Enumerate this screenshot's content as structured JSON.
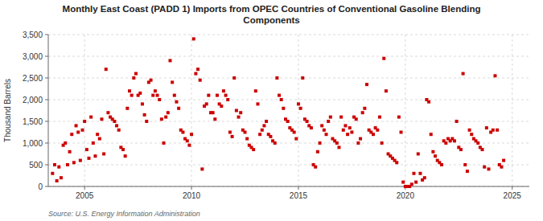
{
  "chart_data": {
    "type": "scatter",
    "title": "Monthly East Coast (PADD 1) Imports from OPEC Countries of Conventional Gasoline Blending\nComponents",
    "ylabel": "Thousand Barrels",
    "annotations": [
      "Source: U.S. Energy Information Administration"
    ],
    "color": "#cc0000",
    "marker": "square",
    "grid": true,
    "xlim": [
      2003.3,
      2025.8
    ],
    "xticks": [
      2005,
      2010,
      2015,
      2020,
      2025
    ],
    "ylim": [
      0,
      3500
    ],
    "yticks": [
      0,
      500,
      {
        "value": 1000,
        "label": "1,000"
      },
      {
        "value": 1500,
        "label": "1,500"
      },
      {
        "value": 2000,
        "label": "2,000"
      },
      {
        "value": 2500,
        "label": "2,500"
      },
      {
        "value": 3000,
        "label": "3,000"
      },
      {
        "value": 3500,
        "label": "3,500"
      }
    ],
    "x": [
      2003.5,
      2003.6,
      2003.7,
      2003.8,
      2003.9,
      2004.0,
      2004.1,
      2004.2,
      2004.3,
      2004.4,
      2004.5,
      2004.6,
      2004.7,
      2004.8,
      2004.9,
      2005.0,
      2005.1,
      2005.2,
      2005.3,
      2005.4,
      2005.5,
      2005.6,
      2005.7,
      2005.8,
      2005.9,
      2006.0,
      2006.1,
      2006.2,
      2006.3,
      2006.4,
      2006.5,
      2006.6,
      2006.7,
      2006.8,
      2006.9,
      2007.0,
      2007.1,
      2007.2,
      2007.3,
      2007.4,
      2007.5,
      2007.6,
      2007.7,
      2007.8,
      2007.9,
      2008.0,
      2008.1,
      2008.2,
      2008.3,
      2008.4,
      2008.5,
      2008.6,
      2008.7,
      2008.8,
      2008.9,
      2009.0,
      2009.1,
      2009.2,
      2009.3,
      2009.4,
      2009.5,
      2009.6,
      2009.7,
      2009.8,
      2009.9,
      2010.0,
      2010.1,
      2010.2,
      2010.3,
      2010.4,
      2010.5,
      2010.6,
      2010.7,
      2010.8,
      2010.9,
      2011.0,
      2011.1,
      2011.2,
      2011.3,
      2011.4,
      2011.5,
      2011.6,
      2011.7,
      2011.8,
      2011.9,
      2012.0,
      2012.1,
      2012.2,
      2012.3,
      2012.4,
      2012.5,
      2012.6,
      2012.7,
      2012.8,
      2012.9,
      2013.0,
      2013.1,
      2013.2,
      2013.3,
      2013.4,
      2013.5,
      2013.6,
      2013.7,
      2013.8,
      2013.9,
      2014.0,
      2014.1,
      2014.2,
      2014.3,
      2014.4,
      2014.5,
      2014.6,
      2014.7,
      2014.8,
      2014.9,
      2015.0,
      2015.1,
      2015.2,
      2015.3,
      2015.4,
      2015.5,
      2015.6,
      2015.7,
      2015.8,
      2015.9,
      2016.0,
      2016.1,
      2016.2,
      2016.3,
      2016.4,
      2016.5,
      2016.6,
      2016.7,
      2016.8,
      2016.9,
      2017.0,
      2017.1,
      2017.2,
      2017.3,
      2017.4,
      2017.5,
      2017.6,
      2017.7,
      2017.8,
      2017.9,
      2018.0,
      2018.1,
      2018.2,
      2018.3,
      2018.4,
      2018.5,
      2018.6,
      2018.7,
      2018.8,
      2018.9,
      2019.0,
      2019.1,
      2019.2,
      2019.3,
      2019.4,
      2019.5,
      2019.6,
      2019.7,
      2019.8,
      2019.9,
      2020.0,
      2020.1,
      2020.2,
      2020.3,
      2020.4,
      2020.5,
      2020.6,
      2020.7,
      2020.8,
      2020.9,
      2021.0,
      2021.1,
      2021.2,
      2021.3,
      2021.4,
      2021.5,
      2021.6,
      2021.7,
      2021.8,
      2021.9,
      2022.0,
      2022.1,
      2022.2,
      2022.3,
      2022.4,
      2022.5,
      2022.6,
      2022.7,
      2022.8,
      2022.9,
      2023.0,
      2023.1,
      2023.2,
      2023.3,
      2023.4,
      2023.5,
      2023.6,
      2023.7,
      2023.8,
      2023.9,
      2024.0,
      2024.1,
      2024.2,
      2024.3,
      2024.4,
      2024.5,
      2024.6
    ],
    "values": [
      300,
      500,
      130,
      450,
      200,
      950,
      1000,
      500,
      800,
      1200,
      550,
      1400,
      1250,
      600,
      1300,
      1500,
      850,
      650,
      1600,
      1000,
      700,
      1200,
      1100,
      1550,
      750,
      2700,
      1700,
      1600,
      1550,
      1500,
      1400,
      1300,
      900,
      850,
      700,
      1800,
      2200,
      2100,
      2500,
      2600,
      2100,
      2150,
      1900,
      1650,
      1500,
      2400,
      2450,
      2100,
      2200,
      2100,
      2000,
      1550,
      1000,
      1600,
      1700,
      2900,
      2400,
      2100,
      1950,
      1800,
      1300,
      1250,
      1100,
      1050,
      950,
      1200,
      3400,
      2600,
      2700,
      2450,
      400,
      1850,
      1900,
      2100,
      1700,
      1700,
      1550,
      2100,
      1900,
      1850,
      2200,
      2100,
      2000,
      1250,
      1150,
      2500,
      1750,
      1600,
      1700,
      1300,
      1250,
      1100,
      950,
      900,
      850,
      2200,
      1900,
      1200,
      1300,
      1400,
      1500,
      1200,
      1150,
      1050,
      1000,
      2500,
      2100,
      2000,
      1800,
      1550,
      1500,
      1350,
      1300,
      1250,
      1100,
      1900,
      1800,
      2500,
      1550,
      1500,
      1400,
      1350,
      500,
      450,
      800,
      1000,
      1400,
      1300,
      1200,
      1500,
      1600,
      1100,
      1050,
      1000,
      900,
      1600,
      1300,
      1400,
      1200,
      1350,
      1250,
      1600,
      1550,
      1000,
      1100,
      1700,
      1800,
      2350,
      1300,
      1250,
      1200,
      1350,
      1300,
      1600,
      1000,
      2950,
      2200,
      750,
      700,
      650,
      600,
      550,
      1600,
      1250,
      100,
      0,
      0,
      0,
      50,
      300,
      100,
      750,
      300,
      150,
      200,
      2000,
      1950,
      1200,
      800,
      700,
      600,
      550,
      500,
      1050,
      1000,
      1100,
      1050,
      1100,
      1050,
      1500,
      900,
      850,
      2600,
      500,
      350,
      1300,
      1200,
      1100,
      1050,
      1000,
      900,
      850,
      450,
      1350,
      400,
      1250,
      1300,
      2550,
      1300,
      500,
      450,
      600
    ]
  }
}
